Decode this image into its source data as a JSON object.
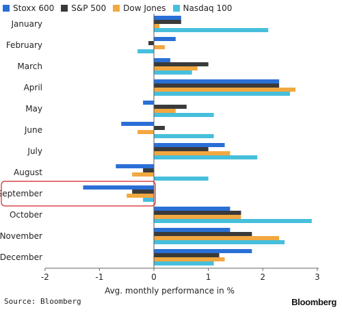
{
  "chart_data": {
    "type": "bar",
    "orientation": "horizontal",
    "categories": [
      "January",
      "February",
      "March",
      "April",
      "May",
      "June",
      "July",
      "August",
      "September",
      "October",
      "November",
      "December"
    ],
    "series": [
      {
        "name": "Stoxx 600",
        "color": "#2a6fd6",
        "values": [
          0.5,
          0.4,
          0.3,
          2.3,
          -0.2,
          -0.6,
          1.3,
          -0.7,
          -1.3,
          1.4,
          1.4,
          1.8
        ]
      },
      {
        "name": "S&P 500",
        "color": "#3a3a3a",
        "values": [
          0.5,
          -0.1,
          1.0,
          2.3,
          0.6,
          0.2,
          1.0,
          -0.2,
          -0.4,
          1.6,
          1.8,
          1.2
        ]
      },
      {
        "name": "Dow Jones",
        "color": "#f2a840",
        "values": [
          0.1,
          0.2,
          0.8,
          2.6,
          0.4,
          -0.3,
          1.4,
          -0.4,
          -0.5,
          1.6,
          2.3,
          1.3
        ]
      },
      {
        "name": "Nasdaq 100",
        "color": "#47bfdc",
        "values": [
          2.1,
          -0.3,
          0.7,
          2.5,
          1.1,
          1.1,
          1.9,
          1.0,
          -0.2,
          2.9,
          2.4,
          1.1
        ]
      }
    ],
    "xlabel": "Avg. monthly performance in %",
    "ylabel": "",
    "xlim": [
      -2,
      3
    ],
    "xticks": [
      "-2",
      "-1",
      "0",
      "1",
      "2",
      "3"
    ],
    "grid": false,
    "legend": "top-left",
    "highlight": {
      "category": "September",
      "color": "#d0202a"
    }
  },
  "footer": {
    "source": "Source: Bloomberg",
    "brand": "Bloomberg"
  }
}
